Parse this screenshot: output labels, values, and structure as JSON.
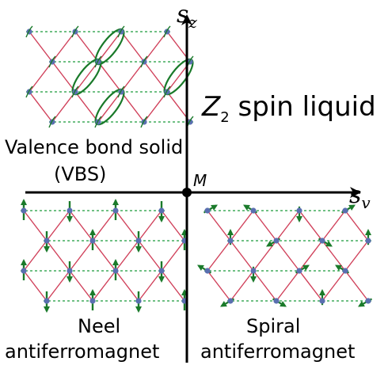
{
  "axes": {
    "vertical_label": "s",
    "vertical_sub": "z",
    "horizontal_label": "s",
    "horizontal_sub": "v",
    "origin_label": "M"
  },
  "regions": {
    "top_right": {
      "title_main": "Z",
      "title_sub": "2",
      "title_rest": " spin liquid"
    },
    "top_left": {
      "line1": "Valence bond solid",
      "line2": "(VBS)"
    },
    "bottom_left": {
      "line1": "Neel",
      "line2": "antiferromagnet"
    },
    "bottom_right": {
      "line1": "Spiral",
      "line2": "antiferromagnet"
    }
  },
  "colors": {
    "lattice_bond": "#d0405a",
    "dashed_bond": "#1a9a3a",
    "spin_arrow": "#1a7a2a",
    "site": "#5a6fb0",
    "dimer_ellipse": "#1a7a2a",
    "axis": "#000000"
  }
}
